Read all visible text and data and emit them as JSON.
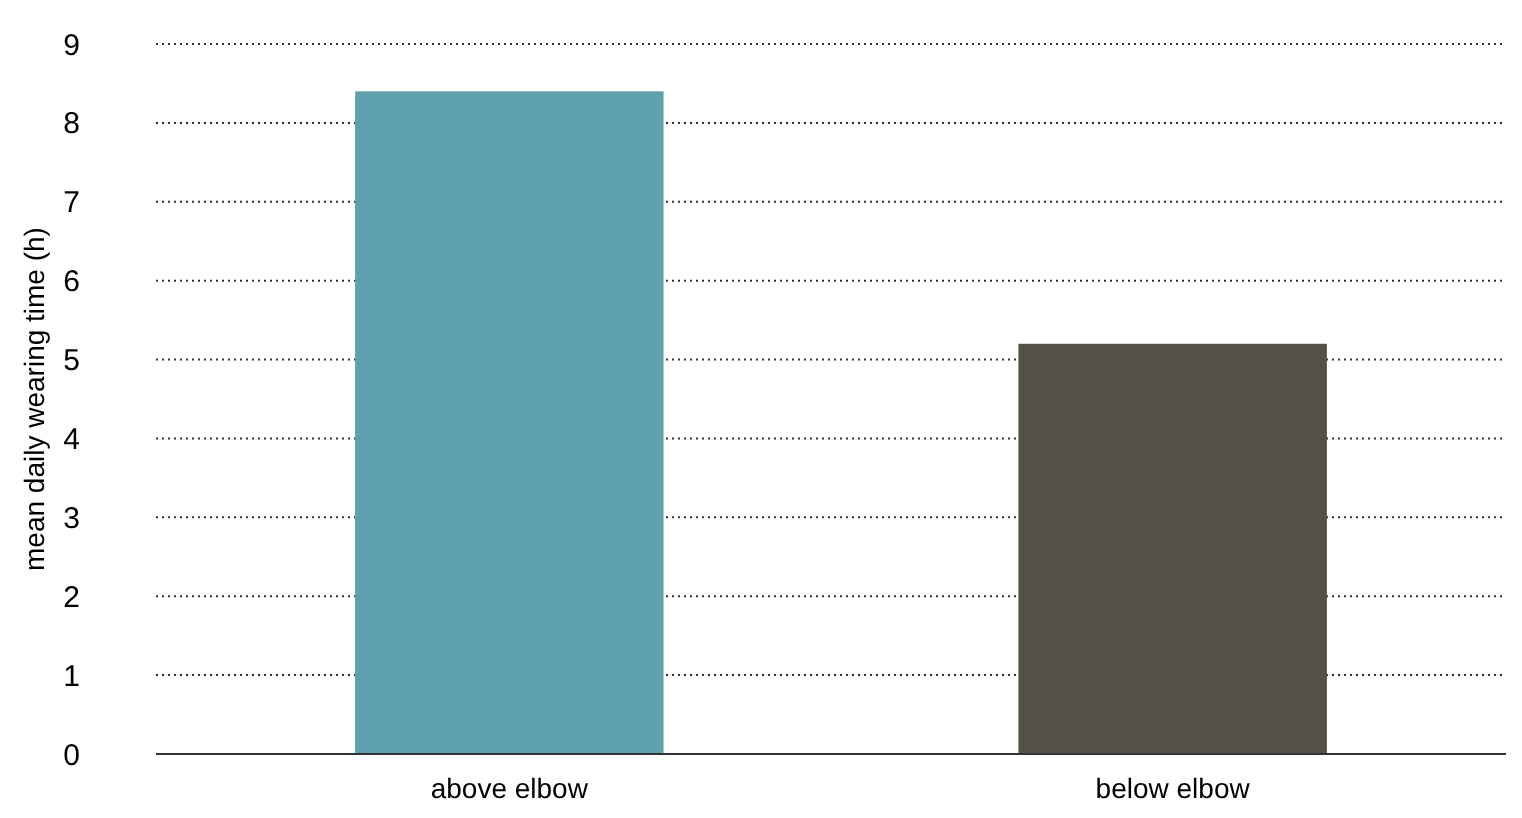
{
  "chart_data": {
    "type": "bar",
    "ylabel": "mean daily wearing time (h)",
    "categories": [
      "above elbow",
      "below elbow"
    ],
    "values": [
      8.4,
      5.2
    ],
    "colors": [
      "#5fa0ae",
      "#555045"
    ],
    "ylim": [
      0,
      9
    ],
    "yticks": [
      0,
      1,
      2,
      3,
      4,
      5,
      6,
      7,
      8,
      9
    ],
    "grid": "y"
  }
}
